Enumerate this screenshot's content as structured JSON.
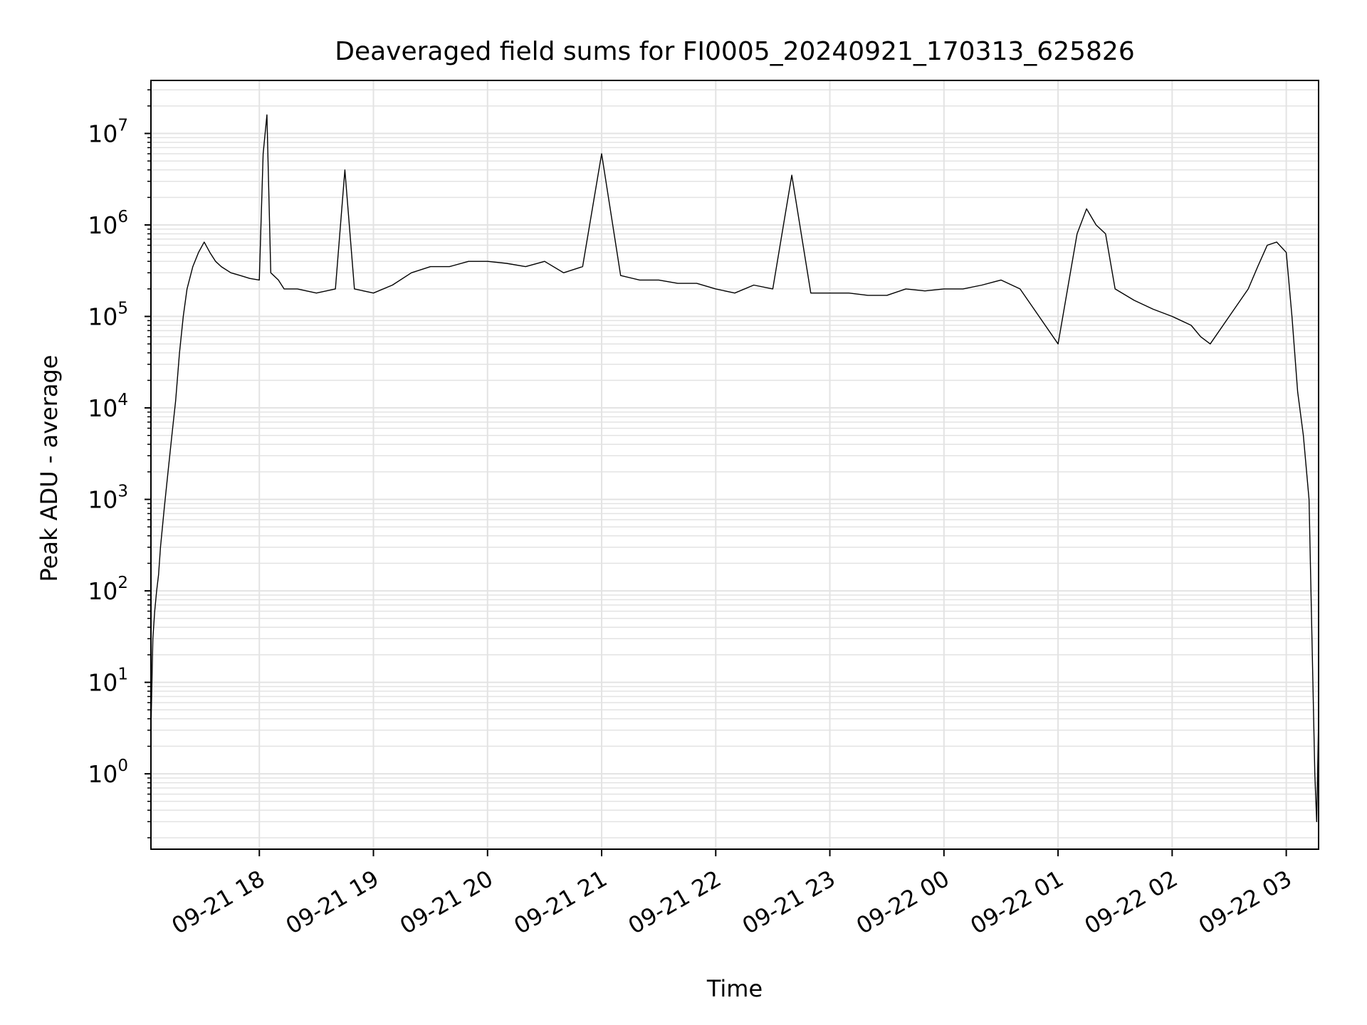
{
  "chart_data": {
    "type": "line",
    "title": "Deaveraged field sums for FI0005_20240921_170313_625826",
    "xlabel": "Time",
    "ylabel": "Peak ADU - average",
    "yscale": "log",
    "ylim": [
      0.15,
      38000000
    ],
    "xlim": [
      "2024-09-21 17:03",
      "2024-09-22 03:17"
    ],
    "grid": true,
    "line_color": "#000000",
    "grid_color": "#e3e3e3",
    "x_ticks": [
      {
        "value": "2024-09-21 18:00",
        "label": "09-21 18"
      },
      {
        "value": "2024-09-21 19:00",
        "label": "09-21 19"
      },
      {
        "value": "2024-09-21 20:00",
        "label": "09-21 20"
      },
      {
        "value": "2024-09-21 21:00",
        "label": "09-21 21"
      },
      {
        "value": "2024-09-21 22:00",
        "label": "09-21 22"
      },
      {
        "value": "2024-09-21 23:00",
        "label": "09-21 23"
      },
      {
        "value": "2024-09-22 00:00",
        "label": "09-22 00"
      },
      {
        "value": "2024-09-22 01:00",
        "label": "09-22 01"
      },
      {
        "value": "2024-09-22 02:00",
        "label": "09-22 02"
      },
      {
        "value": "2024-09-22 03:00",
        "label": "09-22 03"
      }
    ],
    "y_ticks": [
      {
        "value": 1,
        "base": "10",
        "exp": "0"
      },
      {
        "value": 10,
        "base": "10",
        "exp": "1"
      },
      {
        "value": 100,
        "base": "10",
        "exp": "2"
      },
      {
        "value": 1000,
        "base": "10",
        "exp": "3"
      },
      {
        "value": 10000,
        "base": "10",
        "exp": "4"
      },
      {
        "value": 100000,
        "base": "10",
        "exp": "5"
      },
      {
        "value": 1000000,
        "base": "10",
        "exp": "6"
      },
      {
        "value": 10000000,
        "base": "10",
        "exp": "7"
      }
    ],
    "series": [
      {
        "x": [
          "2024-09-21 17:03",
          "2024-09-21 17:04",
          "2024-09-21 17:05",
          "2024-09-21 17:06",
          "2024-09-21 17:07",
          "2024-09-21 17:08",
          "2024-09-21 17:10",
          "2024-09-21 17:12",
          "2024-09-21 17:14",
          "2024-09-21 17:16",
          "2024-09-21 17:18",
          "2024-09-21 17:20",
          "2024-09-21 17:22",
          "2024-09-21 17:25",
          "2024-09-21 17:28",
          "2024-09-21 17:31",
          "2024-09-21 17:34",
          "2024-09-21 17:37",
          "2024-09-21 17:40",
          "2024-09-21 17:45",
          "2024-09-21 17:50",
          "2024-09-21 17:55",
          "2024-09-21 18:00",
          "2024-09-21 18:02",
          "2024-09-21 18:04",
          "2024-09-21 18:06",
          "2024-09-21 18:10",
          "2024-09-21 18:13",
          "2024-09-21 18:20",
          "2024-09-21 18:30",
          "2024-09-21 18:40",
          "2024-09-21 18:45",
          "2024-09-21 18:50",
          "2024-09-21 19:00",
          "2024-09-21 19:10",
          "2024-09-21 19:20",
          "2024-09-21 19:30",
          "2024-09-21 19:40",
          "2024-09-21 19:50",
          "2024-09-21 20:00",
          "2024-09-21 20:10",
          "2024-09-21 20:20",
          "2024-09-21 20:30",
          "2024-09-21 20:40",
          "2024-09-21 20:50",
          "2024-09-21 21:00",
          "2024-09-21 21:10",
          "2024-09-21 21:20",
          "2024-09-21 21:30",
          "2024-09-21 21:40",
          "2024-09-21 21:50",
          "2024-09-21 22:00",
          "2024-09-21 22:10",
          "2024-09-21 22:20",
          "2024-09-21 22:30",
          "2024-09-21 22:40",
          "2024-09-21 22:50",
          "2024-09-21 23:00",
          "2024-09-21 23:10",
          "2024-09-21 23:20",
          "2024-09-21 23:30",
          "2024-09-21 23:40",
          "2024-09-21 23:50",
          "2024-09-22 00:00",
          "2024-09-22 00:10",
          "2024-09-22 00:20",
          "2024-09-22 00:30",
          "2024-09-22 00:40",
          "2024-09-22 00:50",
          "2024-09-22 01:00",
          "2024-09-22 01:10",
          "2024-09-22 01:15",
          "2024-09-22 01:20",
          "2024-09-22 01:25",
          "2024-09-22 01:30",
          "2024-09-22 01:40",
          "2024-09-22 01:50",
          "2024-09-22 02:00",
          "2024-09-22 02:10",
          "2024-09-22 02:15",
          "2024-09-22 02:20",
          "2024-09-22 02:30",
          "2024-09-22 02:40",
          "2024-09-22 02:45",
          "2024-09-22 02:50",
          "2024-09-22 02:55",
          "2024-09-22 03:00",
          "2024-09-22 03:03",
          "2024-09-22 03:06",
          "2024-09-22 03:09",
          "2024-09-22 03:12",
          "2024-09-22 03:14",
          "2024-09-22 03:15",
          "2024-09-22 03:16",
          "2024-09-22 03:17"
        ],
        "values": [
          3,
          30,
          60,
          100,
          150,
          300,
          800,
          2000,
          5000,
          12000,
          40000,
          100000,
          200000,
          350000,
          500000,
          650000,
          500000,
          400000,
          350000,
          300000,
          280000,
          260000,
          250000,
          6000000,
          16000000,
          300000,
          250000,
          200000,
          200000,
          180000,
          200000,
          4000000,
          200000,
          180000,
          220000,
          300000,
          350000,
          350000,
          400000,
          400000,
          380000,
          350000,
          400000,
          300000,
          350000,
          6000000,
          280000,
          250000,
          250000,
          230000,
          230000,
          200000,
          180000,
          220000,
          200000,
          3500000,
          180000,
          180000,
          180000,
          170000,
          170000,
          200000,
          190000,
          200000,
          200000,
          220000,
          250000,
          200000,
          100000,
          50000,
          800000,
          1500000,
          1000000,
          800000,
          200000,
          150000,
          120000,
          100000,
          80000,
          60000,
          50000,
          100000,
          200000,
          350000,
          600000,
          650000,
          500000,
          100000,
          15000,
          5000,
          1000,
          10,
          1,
          0.3,
          4
        ]
      }
    ]
  }
}
